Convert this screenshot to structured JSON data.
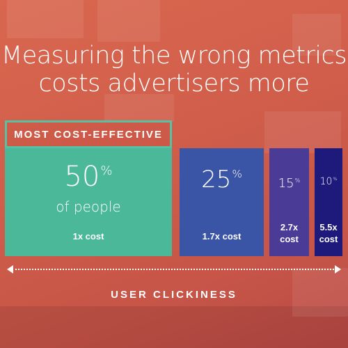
{
  "title_lines": [
    "Measuring the wrong metrics",
    "costs advertisers more"
  ],
  "highlight_label": "MOST COST-EFFECTIVE",
  "axis_label": "USER CLICKINESS",
  "colors": {
    "background": "#d0604b",
    "bar_1": "#4bb89a",
    "bar_2": "#3a55a5",
    "bar_3": "#4a3c96",
    "bar_4": "#1e1a7c",
    "highlight_border": "#56c2a4"
  },
  "chart_data": {
    "type": "bar",
    "title": "Measuring the wrong metrics costs advertisers more",
    "xlabel": "USER CLICKINESS",
    "ylabel": "",
    "categories": [
      "50%",
      "25%",
      "15%",
      "10%"
    ],
    "values": [
      50,
      25,
      15,
      10
    ],
    "value_unit": "%",
    "sublabels": [
      "of people",
      "",
      "",
      ""
    ],
    "costs": [
      "1x cost",
      "1.7x cost",
      "2.7x cost",
      "5.5x cost"
    ],
    "cost_multipliers": [
      1,
      1.7,
      2.7,
      5.5
    ]
  }
}
